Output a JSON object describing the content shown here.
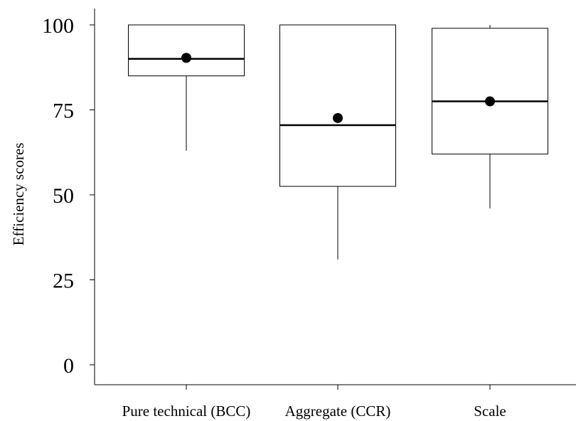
{
  "chart_data": {
    "type": "box",
    "ylabel": "Efficiency scores",
    "ylim": [
      0,
      100
    ],
    "yticks": [
      0,
      25,
      50,
      75,
      100
    ],
    "categories": [
      "Pure technical (BCC)",
      "Aggregate (CCR)",
      "Scale"
    ],
    "boxes": [
      {
        "category": "Pure technical (BCC)",
        "whisker_low": 63,
        "q1": 85,
        "median": 90,
        "q3": 100,
        "whisker_high": 100,
        "mean": 90.3
      },
      {
        "category": "Aggregate (CCR)",
        "whisker_low": 31,
        "q1": 52.5,
        "median": 70.5,
        "q3": 100,
        "whisker_high": 100,
        "mean": 72.6
      },
      {
        "category": "Scale",
        "whisker_low": 46,
        "q1": 62,
        "median": 77.5,
        "q3": 99,
        "whisker_high": 100,
        "mean": 77.5
      }
    ],
    "grid": false,
    "legend": "none"
  }
}
